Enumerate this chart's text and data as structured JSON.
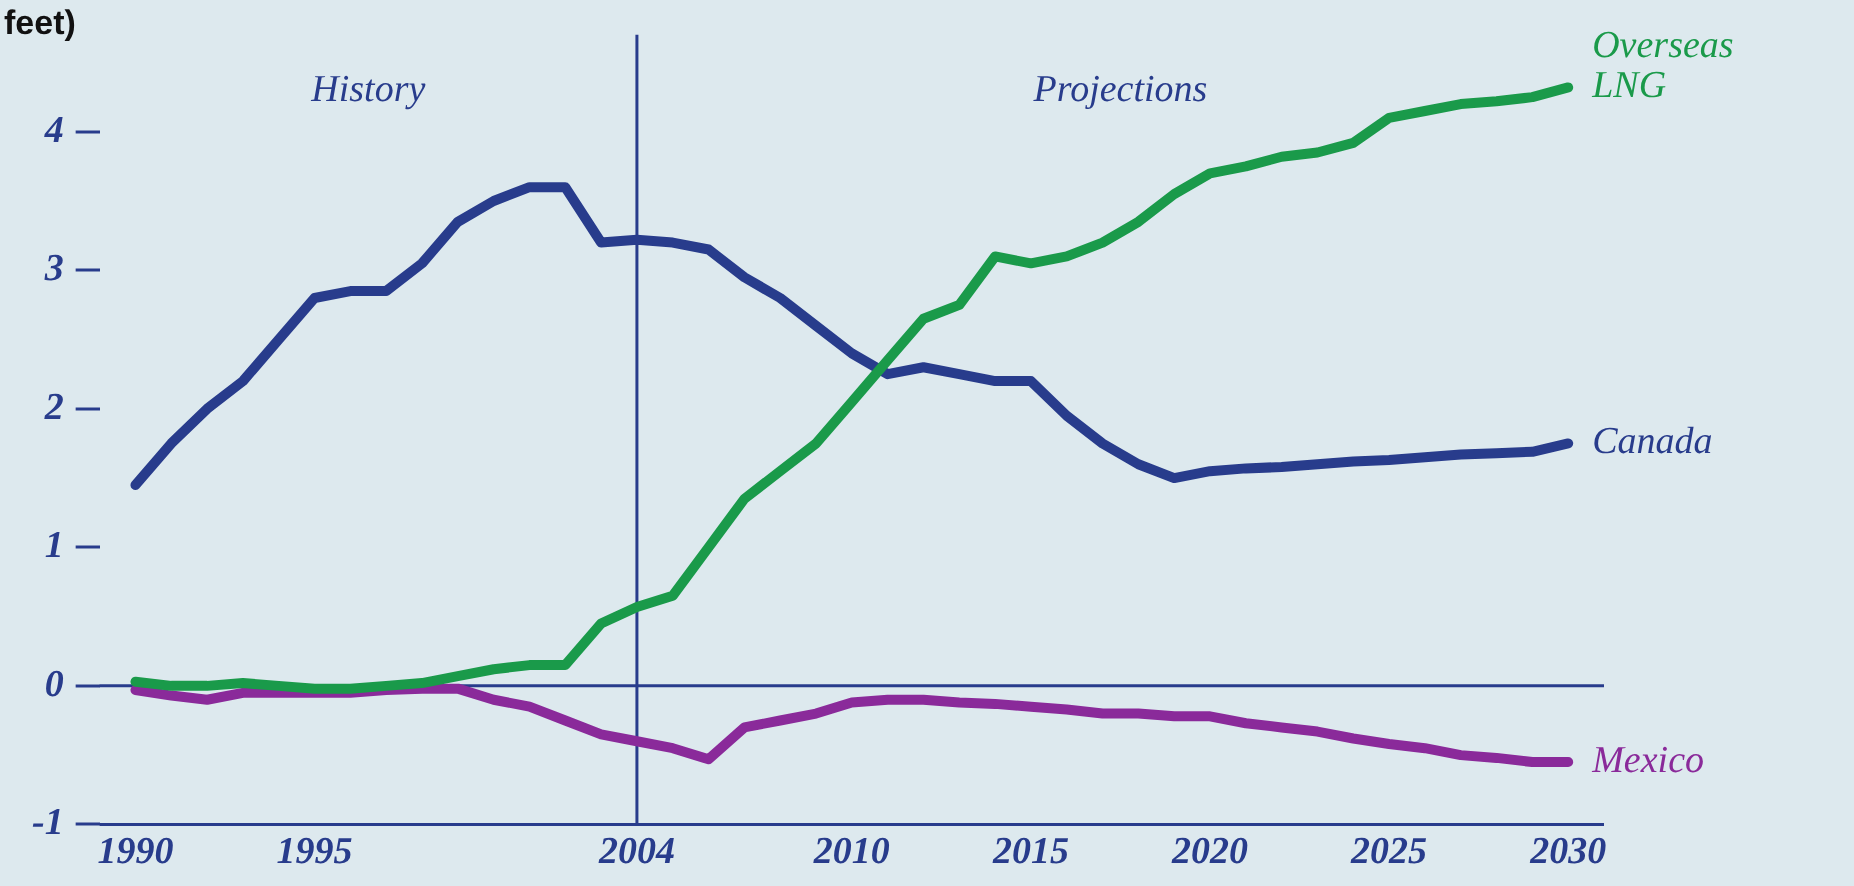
{
  "chart_data": {
    "type": "line",
    "ylabel": "feet)",
    "x": [
      1990,
      1991,
      1992,
      1993,
      1994,
      1995,
      1996,
      1997,
      1998,
      1999,
      2000,
      2001,
      2002,
      2003,
      2004,
      2005,
      2006,
      2007,
      2008,
      2009,
      2010,
      2011,
      2012,
      2013,
      2014,
      2015,
      2016,
      2017,
      2018,
      2019,
      2020,
      2021,
      2022,
      2023,
      2024,
      2025,
      2026,
      2027,
      2028,
      2029,
      2030
    ],
    "series": [
      {
        "name": "Overseas LNG",
        "color": "#1a9a4a",
        "values": [
          0.03,
          0,
          0,
          0.02,
          0,
          -0.02,
          -0.02,
          0,
          0.02,
          0.07,
          0.12,
          0.15,
          0.15,
          0.45,
          0.57,
          0.65,
          1.0,
          1.35,
          1.55,
          1.75,
          2.05,
          2.35,
          2.65,
          2.75,
          3.1,
          3.05,
          3.1,
          3.2,
          3.35,
          3.55,
          3.7,
          3.75,
          3.82,
          3.85,
          3.92,
          4.1,
          4.15,
          4.2,
          4.22,
          4.25,
          4.32
        ]
      },
      {
        "name": "Canada",
        "color": "#283c8c",
        "values": [
          1.45,
          1.75,
          2.0,
          2.2,
          2.5,
          2.8,
          2.85,
          2.85,
          3.05,
          3.35,
          3.5,
          3.6,
          3.6,
          3.2,
          3.22,
          3.2,
          3.15,
          2.95,
          2.8,
          2.6,
          2.4,
          2.25,
          2.3,
          2.25,
          2.2,
          2.2,
          1.95,
          1.75,
          1.6,
          1.5,
          1.55,
          1.57,
          1.58,
          1.6,
          1.62,
          1.63,
          1.65,
          1.67,
          1.68,
          1.69,
          1.75
        ]
      },
      {
        "name": "Mexico",
        "color": "#8a2a9a",
        "values": [
          -0.03,
          -0.07,
          -0.1,
          -0.05,
          -0.05,
          -0.05,
          -0.05,
          -0.03,
          -0.02,
          -0.02,
          -0.1,
          -0.15,
          -0.25,
          -0.35,
          -0.4,
          -0.45,
          -0.53,
          -0.3,
          -0.25,
          -0.2,
          -0.12,
          -0.1,
          -0.1,
          -0.12,
          -0.13,
          -0.15,
          -0.17,
          -0.2,
          -0.2,
          -0.22,
          -0.22,
          -0.27,
          -0.3,
          -0.33,
          -0.38,
          -0.42,
          -0.45,
          -0.5,
          -0.52,
          -0.55,
          -0.55
        ]
      }
    ],
    "xlim": [
      1989,
      2031
    ],
    "xticks": [
      1990,
      1995,
      2004,
      2010,
      2015,
      2020,
      2025,
      2030
    ],
    "ylim": [
      -1,
      4.7
    ],
    "yticks": [
      -1,
      0,
      1,
      2,
      3,
      4
    ],
    "ref_lines": [
      {
        "axis": "x",
        "value": 2004,
        "color": "#283c8c"
      },
      {
        "axis": "y",
        "value": 0,
        "color": "#283c8c"
      }
    ],
    "annotations": [
      "History",
      "Projections"
    ],
    "grid": false,
    "legend": false,
    "marker": "none",
    "line_style": "solid"
  }
}
